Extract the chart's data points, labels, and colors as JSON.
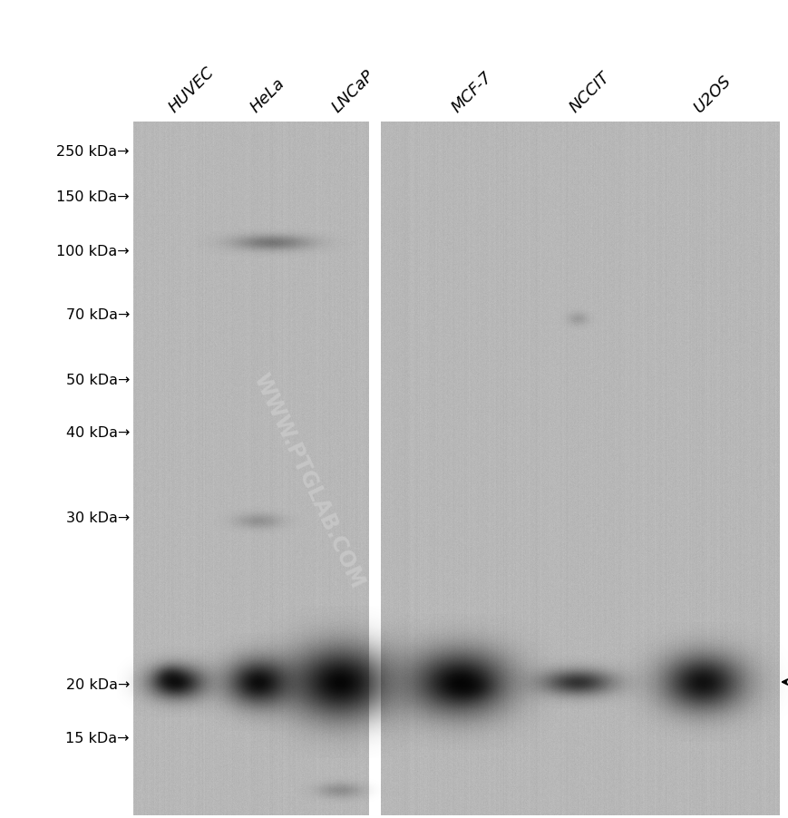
{
  "figure_width": 8.7,
  "figure_height": 9.03,
  "bg_color": "#ffffff",
  "gel_bg_color_rgb": [
    0.72,
    0.72,
    0.72
  ],
  "lane_labels": [
    "HUVEC",
    "HeLa",
    "LNCaP",
    "MCF-7",
    "NCCIT",
    "U2OS"
  ],
  "marker_labels": [
    "250 kDa",
    "150 kDa",
    "100 kDa",
    "70 kDa",
    "50 kDa",
    "40 kDa",
    "30 kDa",
    "20 kDa",
    "15 kDa"
  ],
  "watermark_text": "WWW.PTGLAB.COM",
  "watermark_color": "#cccccc"
}
